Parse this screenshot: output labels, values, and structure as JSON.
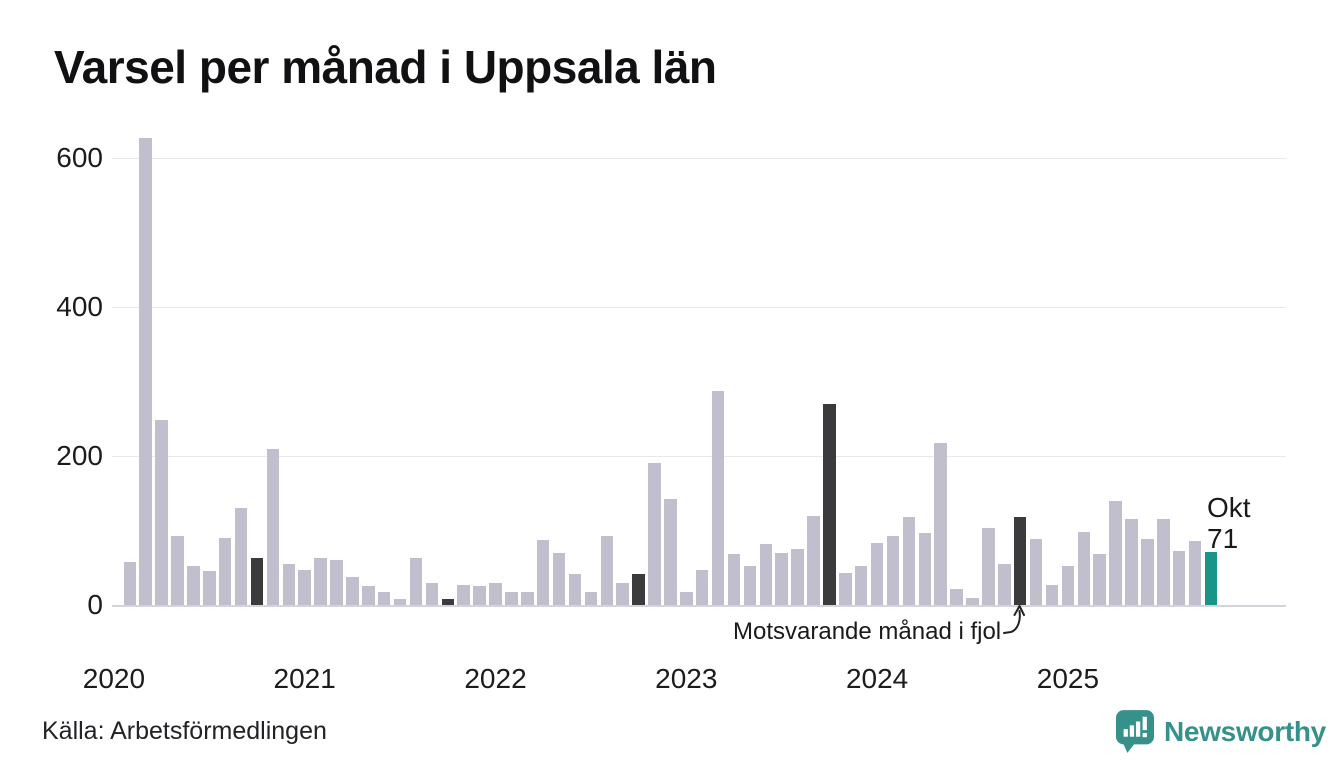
{
  "title": "Varsel per månad i Uppsala län",
  "source": "Källa: Arbetsförmedlingen",
  "brand": {
    "name": "Newsworthy"
  },
  "annotation": {
    "text": "Motsvarande månad i fjol"
  },
  "current_label": {
    "month": "Okt",
    "value": "71"
  },
  "colors": {
    "bar": "#c1bfce",
    "bar_highlight": "#3b3b3e",
    "bar_current": "#189588",
    "grid": "#e8e8ec",
    "axis_baseline": "#d4d4da",
    "text": "#1a1a1c",
    "brand_teal": "#35918a"
  },
  "chart_data": {
    "type": "bar",
    "title": "Varsel per månad i Uppsala län",
    "xlabel": "",
    "ylabel": "",
    "ylim": [
      0,
      650
    ],
    "yticks": [
      0,
      200,
      400,
      600
    ],
    "grid": true,
    "legend_note": "Dark bars = October of each year (Motsvarande månad i fjol); teal bar = Okt 2025, labelled 71",
    "categories": [
      "2020-02",
      "2020-03",
      "2020-04",
      "2020-05",
      "2020-06",
      "2020-07",
      "2020-08",
      "2020-09",
      "2020-10",
      "2020-11",
      "2020-12",
      "2021-01",
      "2021-02",
      "2021-03",
      "2021-04",
      "2021-05",
      "2021-06",
      "2021-07",
      "2021-08",
      "2021-09",
      "2021-10",
      "2021-11",
      "2021-12",
      "2022-01",
      "2022-02",
      "2022-03",
      "2022-04",
      "2022-05",
      "2022-06",
      "2022-07",
      "2022-08",
      "2022-09",
      "2022-10",
      "2022-11",
      "2022-12",
      "2023-01",
      "2023-02",
      "2023-03",
      "2023-04",
      "2023-05",
      "2023-06",
      "2023-07",
      "2023-08",
      "2023-09",
      "2023-10",
      "2023-11",
      "2023-12",
      "2024-01",
      "2024-02",
      "2024-03",
      "2024-04",
      "2024-05",
      "2024-06",
      "2024-07",
      "2024-08",
      "2024-09",
      "2024-10",
      "2024-11",
      "2024-12",
      "2025-01",
      "2025-02",
      "2025-03",
      "2025-04",
      "2025-05",
      "2025-06",
      "2025-07",
      "2025-08",
      "2025-09",
      "2025-10"
    ],
    "values": [
      58,
      627,
      248,
      92,
      53,
      45,
      90,
      130,
      63,
      210,
      55,
      47,
      63,
      60,
      37,
      25,
      18,
      8,
      63,
      30,
      8,
      27,
      25,
      30,
      18,
      18,
      87,
      70,
      42,
      18,
      92,
      30,
      42,
      190,
      142,
      18,
      47,
      287,
      68,
      53,
      82,
      70,
      75,
      120,
      270,
      43,
      52,
      83,
      93,
      118,
      97,
      218,
      22,
      9,
      103,
      55,
      118,
      88,
      27,
      53,
      98,
      68,
      140,
      115,
      88,
      115,
      73,
      86,
      71
    ],
    "highlight_indices": [
      8,
      20,
      32,
      44,
      56
    ],
    "current_index": 68,
    "xticks": [
      {
        "label": "2020",
        "month_index": -1
      },
      {
        "label": "2021",
        "month_index": 11
      },
      {
        "label": "2022",
        "month_index": 23
      },
      {
        "label": "2023",
        "month_index": 35
      },
      {
        "label": "2024",
        "month_index": 47
      },
      {
        "label": "2025",
        "month_index": 59
      }
    ]
  }
}
